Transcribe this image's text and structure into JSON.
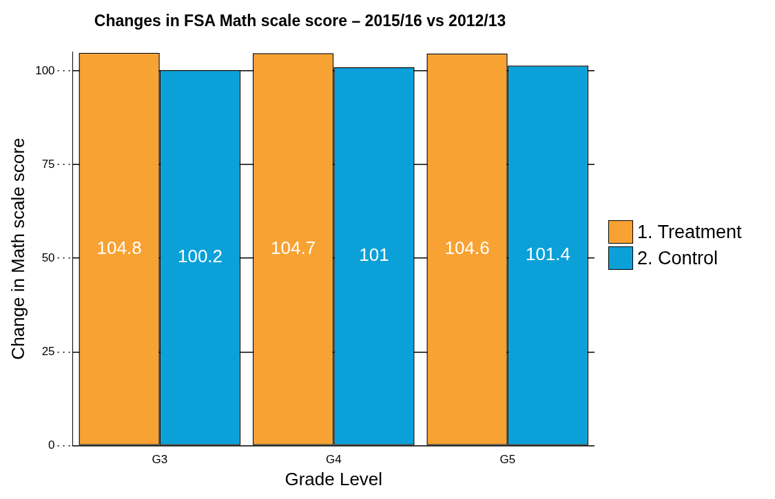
{
  "chart_data": {
    "type": "bar",
    "title": "Changes in FSA Math scale score – 2015/16 vs 2012/13",
    "xlabel": "Grade Level",
    "ylabel": "Change in Math scale score",
    "categories": [
      "G3",
      "G4",
      "G5"
    ],
    "series": [
      {
        "name": "1. Treatment",
        "color": "#f8a233",
        "values": [
          104.8,
          104.7,
          104.6
        ]
      },
      {
        "name": "2. Control",
        "color": "#0ba0d8",
        "values": [
          100.2,
          101,
          101.4
        ]
      }
    ],
    "ylim": [
      0,
      105
    ],
    "yticks": [
      0,
      25,
      50,
      75,
      100
    ],
    "grid": "y",
    "legend": "right",
    "data_labels": true
  }
}
